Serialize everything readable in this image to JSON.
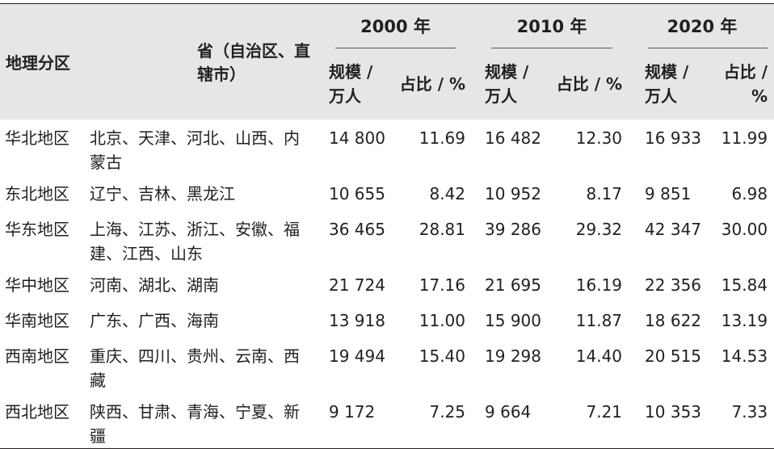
{
  "header": {
    "region_col": "地理分区",
    "province_col": "省（自治区、直辖市）",
    "years": [
      "2000 年",
      "2010 年",
      "2020 年"
    ],
    "size_label": "规模 / 万人",
    "share_label": "占比 / %"
  },
  "rows": [
    {
      "region": "华北地区",
      "provinces": "北京、天津、河北、山西、内蒙古",
      "v2000": "14 800",
      "p2000": "11.69",
      "v2010": "16 482",
      "p2010": "12.30",
      "v2020": "16 933",
      "p2020": "11.99"
    },
    {
      "region": "东北地区",
      "provinces": "辽宁、吉林、黑龙江",
      "v2000": "10 655",
      "p2000": "8.42",
      "v2010": "10 952",
      "p2010": "8.17",
      "v2020": "9 851",
      "p2020": "6.98"
    },
    {
      "region": "华东地区",
      "provinces": "上海、江苏、浙江、安徽、福建、江西、山东",
      "v2000": "36 465",
      "p2000": "28.81",
      "v2010": "39 286",
      "p2010": "29.32",
      "v2020": "42 347",
      "p2020": "30.00"
    },
    {
      "region": "华中地区",
      "provinces": "河南、湖北、湖南",
      "v2000": "21 724",
      "p2000": "17.16",
      "v2010": "21 695",
      "p2010": "16.19",
      "v2020": "22 356",
      "p2020": "15.84"
    },
    {
      "region": "华南地区",
      "provinces": "广东、广西、海南",
      "v2000": "13 918",
      "p2000": "11.00",
      "v2010": "15 900",
      "p2010": "11.87",
      "v2020": "18 622",
      "p2020": "13.19"
    },
    {
      "region": "西南地区",
      "provinces": "重庆、四川、贵州、云南、西藏",
      "v2000": "19 494",
      "p2000": "15.40",
      "v2010": "19 298",
      "p2010": "14.40",
      "v2020": "20 515",
      "p2020": "14.53"
    },
    {
      "region": "西北地区",
      "provinces": "陕西、甘肃、青海、宁夏、新疆",
      "v2000": "9 172",
      "p2000": "7.25",
      "v2010": "9 664",
      "p2010": "7.21",
      "v2020": "10 353",
      "p2020": "7.33"
    }
  ]
}
